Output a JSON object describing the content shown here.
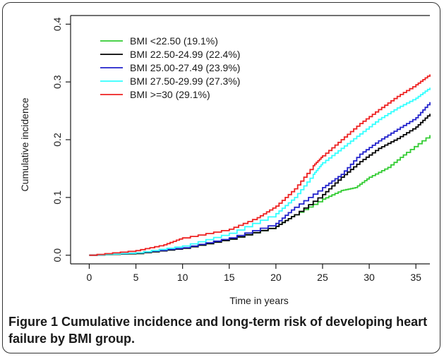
{
  "chart_data": {
    "type": "line",
    "xlabel": "Time in years",
    "ylabel": "Cumulative incidence",
    "xlim": [
      -2,
      36.5
    ],
    "ylim": [
      -0.015,
      0.415
    ],
    "xticks": [
      0,
      5,
      10,
      15,
      20,
      25,
      30,
      35
    ],
    "yticks": [
      0.0,
      0.1,
      0.2,
      0.3,
      0.4
    ],
    "ytick_labels": [
      "0.0",
      "0.1",
      "0.2",
      "0.3",
      "0.4"
    ],
    "legend_position": "top-left",
    "series": [
      {
        "name": "BMI <22.50 (19.1%)",
        "color": "#33cc33",
        "x": [
          0,
          5,
          10,
          15,
          20,
          22,
          25,
          27,
          28.5,
          30,
          32,
          34,
          36.5
        ],
        "y": [
          0,
          0.003,
          0.012,
          0.028,
          0.05,
          0.07,
          0.097,
          0.112,
          0.117,
          0.135,
          0.152,
          0.178,
          0.208
        ]
      },
      {
        "name": "BMI 22.50-24.99 (22.4%)",
        "color": "#000000",
        "x": [
          0,
          5,
          10,
          15,
          20,
          22,
          25,
          27,
          29,
          31,
          33,
          35,
          36.5
        ],
        "y": [
          0,
          0.003,
          0.012,
          0.028,
          0.05,
          0.07,
          0.105,
          0.135,
          0.162,
          0.185,
          0.202,
          0.222,
          0.245
        ]
      },
      {
        "name": "BMI 25.00-27.49 (23.9%)",
        "color": "#2222cc",
        "x": [
          0,
          5,
          10,
          15,
          20,
          22,
          25,
          27,
          29,
          31,
          33,
          35,
          36.5
        ],
        "y": [
          0,
          0.004,
          0.013,
          0.03,
          0.055,
          0.083,
          0.117,
          0.14,
          0.175,
          0.198,
          0.218,
          0.238,
          0.265
        ]
      },
      {
        "name": "BMI 27.50-29.99 (27.3%)",
        "color": "#33ffff",
        "x": [
          0,
          5,
          10,
          15,
          20,
          22,
          24,
          25,
          27,
          29,
          31,
          33,
          35,
          36.5
        ],
        "y": [
          0,
          0.004,
          0.016,
          0.038,
          0.072,
          0.1,
          0.14,
          0.16,
          0.185,
          0.21,
          0.235,
          0.255,
          0.272,
          0.29
        ]
      },
      {
        "name": "BMI >=30 (29.1%)",
        "color": "#ee2222",
        "x": [
          0,
          5,
          8,
          10,
          15,
          18,
          20,
          22,
          24,
          25,
          27,
          29,
          31,
          33,
          35,
          36.5
        ],
        "y": [
          0,
          0.008,
          0.018,
          0.03,
          0.045,
          0.065,
          0.085,
          0.115,
          0.155,
          0.172,
          0.2,
          0.228,
          0.252,
          0.275,
          0.295,
          0.313
        ]
      }
    ]
  },
  "caption": {
    "label": "Figure 1",
    "text": "Cumulative incidence and long-term risk of developing heart failure by BMI group."
  }
}
